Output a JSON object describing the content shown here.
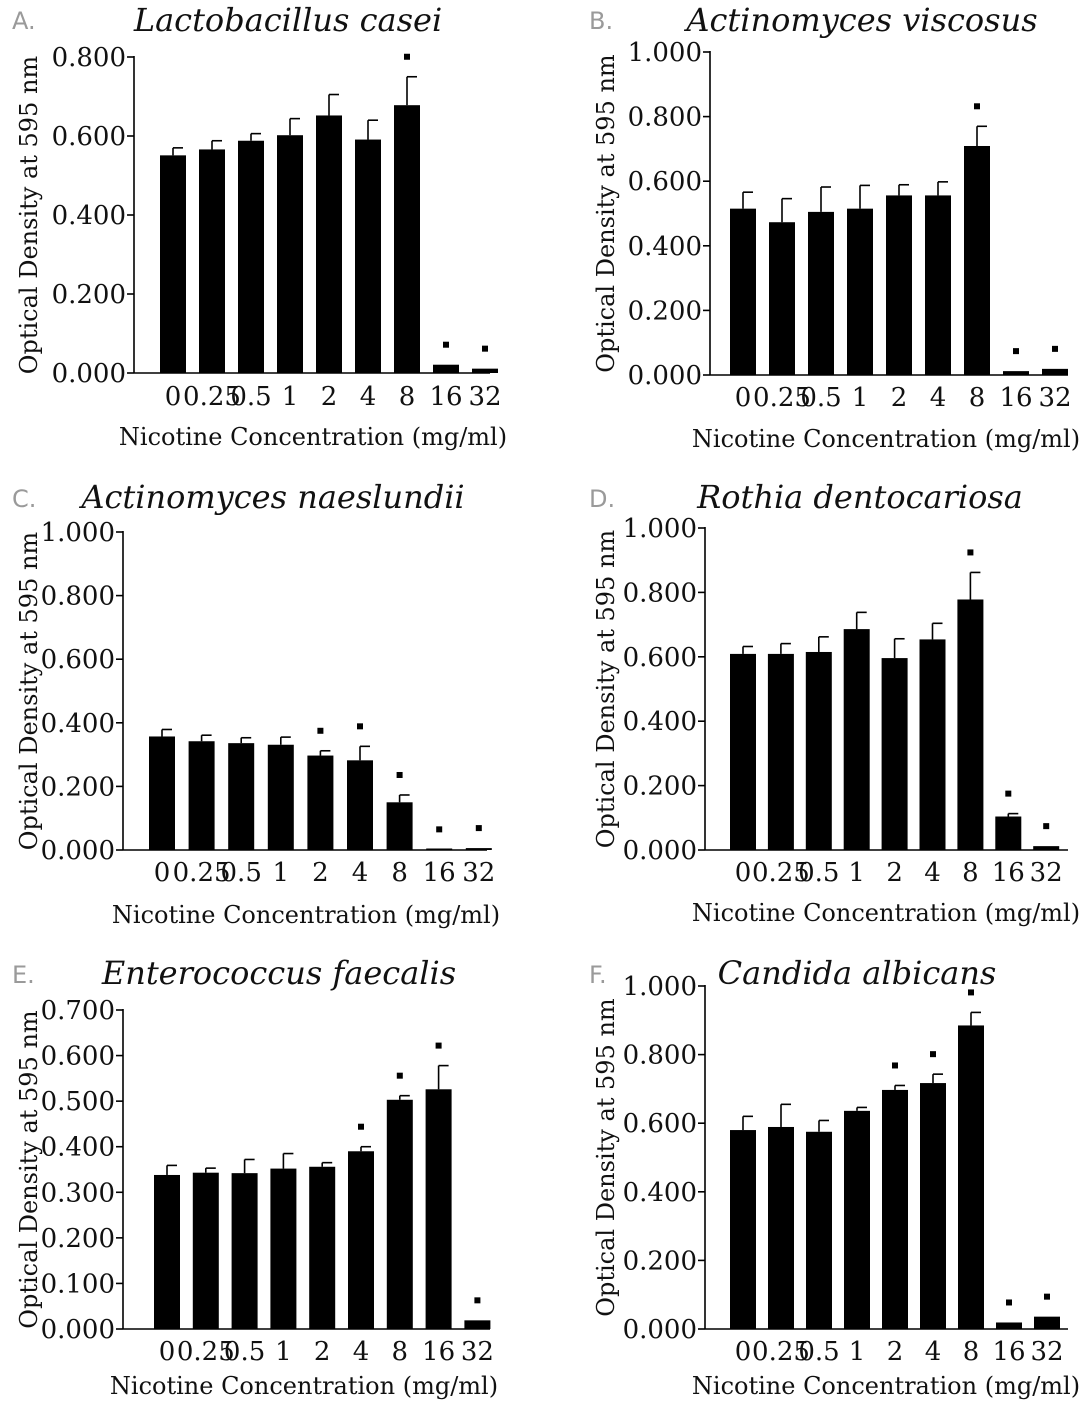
{
  "figure": {
    "x_axis_label": "Nicotine Concentration (mg/ml)",
    "y_axis_label": "Optical Density at 595 nm",
    "bar_color": "#000000",
    "marker": "■"
  },
  "chart_data": [
    {
      "type": "bar",
      "panel": "A.",
      "title": "Lactobacillus casei",
      "xlabel": "Nicotine Concentration (mg/ml)",
      "ylabel": "Optical Density at 595 nm",
      "categories": [
        "0",
        "0.25",
        "0.5",
        "1",
        "2",
        "4",
        "8",
        "16",
        "32"
      ],
      "values": [
        0.551,
        0.566,
        0.588,
        0.602,
        0.652,
        0.591,
        0.678,
        0.021,
        0.011
      ],
      "errors": [
        0.019,
        0.022,
        0.018,
        0.042,
        0.053,
        0.049,
        0.072,
        0.0,
        0.0
      ],
      "significant": [
        false,
        false,
        false,
        false,
        false,
        false,
        true,
        true,
        true
      ],
      "ylim": [
        0,
        0.8
      ],
      "yticks": [
        "0.000",
        "0.200",
        "0.400",
        "0.600",
        "0.800"
      ]
    },
    {
      "type": "bar",
      "panel": "B.",
      "title": "Actinomyces viscosus",
      "xlabel": "Nicotine Concentration (mg/ml)",
      "ylabel": "Optical Density at 595 nm",
      "categories": [
        "0",
        "0.25",
        "0.5",
        "1",
        "2",
        "4",
        "8",
        "16",
        "32"
      ],
      "values": [
        0.515,
        0.473,
        0.505,
        0.515,
        0.556,
        0.556,
        0.709,
        0.012,
        0.019
      ],
      "errors": [
        0.051,
        0.073,
        0.077,
        0.072,
        0.033,
        0.042,
        0.061,
        0.0,
        0.0
      ],
      "significant": [
        false,
        false,
        false,
        false,
        false,
        false,
        true,
        true,
        true
      ],
      "ylim": [
        0,
        1.0
      ],
      "yticks": [
        "0.000",
        "0.200",
        "0.400",
        "0.600",
        "0.800",
        "1.000"
      ]
    },
    {
      "type": "bar",
      "panel": "C.",
      "title": "Actinomyces naeslundii",
      "xlabel": "Nicotine Concentration (mg/ml)",
      "ylabel": "Optical Density at 595 nm",
      "categories": [
        "0",
        "0.25",
        "0.5",
        "1",
        "2",
        "4",
        "8",
        "16",
        "32"
      ],
      "values": [
        0.357,
        0.342,
        0.336,
        0.331,
        0.297,
        0.282,
        0.15,
        0.002,
        0.006
      ],
      "errors": [
        0.022,
        0.019,
        0.017,
        0.024,
        0.015,
        0.044,
        0.023,
        0.0,
        0.0
      ],
      "significant": [
        false,
        false,
        false,
        false,
        true,
        true,
        true,
        true,
        true
      ],
      "ylim": [
        0,
        1.0
      ],
      "yticks": [
        "0.000",
        "0.200",
        "0.400",
        "0.600",
        "0.800",
        "1.000"
      ]
    },
    {
      "type": "bar",
      "panel": "D.",
      "title": "Rothia dentocariosa",
      "xlabel": "Nicotine Concentration (mg/ml)",
      "ylabel": "Optical Density at 595 nm",
      "categories": [
        "0",
        "0.25",
        "0.5",
        "1",
        "2",
        "4",
        "8",
        "16",
        "32"
      ],
      "values": [
        0.609,
        0.609,
        0.615,
        0.686,
        0.596,
        0.654,
        0.778,
        0.104,
        0.012
      ],
      "errors": [
        0.023,
        0.032,
        0.047,
        0.052,
        0.06,
        0.05,
        0.084,
        0.009,
        0.0
      ],
      "significant": [
        false,
        false,
        false,
        false,
        false,
        false,
        true,
        true,
        true
      ],
      "ylim": [
        0,
        1.0
      ],
      "yticks": [
        "0.000",
        "0.200",
        "0.400",
        "0.600",
        "0.800",
        "1.000"
      ]
    },
    {
      "type": "bar",
      "panel": "E.",
      "title": "Enterococcus faecalis",
      "xlabel": "Nicotine Concentration (mg/ml)",
      "ylabel": "Optical Density at 595 nm",
      "categories": [
        "0",
        "0.25",
        "0.5",
        "1",
        "2",
        "4",
        "8",
        "16",
        "32"
      ],
      "values": [
        0.338,
        0.343,
        0.342,
        0.352,
        0.356,
        0.39,
        0.503,
        0.526,
        0.019
      ],
      "errors": [
        0.021,
        0.01,
        0.03,
        0.033,
        0.009,
        0.01,
        0.009,
        0.052,
        0.0
      ],
      "significant": [
        false,
        false,
        false,
        false,
        false,
        true,
        true,
        true,
        true
      ],
      "ylim": [
        0,
        0.7
      ],
      "yticks": [
        "0.000",
        "0.100",
        "0.200",
        "0.300",
        "0.400",
        "0.500",
        "0.600",
        "0.700"
      ]
    },
    {
      "type": "bar",
      "panel": "F.",
      "title": "Candida albicans",
      "xlabel": "Nicotine Concentration (mg/ml)",
      "ylabel": "Optical Density at 595 nm",
      "categories": [
        "0",
        "0.25",
        "0.5",
        "1",
        "2",
        "4",
        "8",
        "16",
        "32"
      ],
      "values": [
        0.58,
        0.589,
        0.575,
        0.636,
        0.697,
        0.717,
        0.885,
        0.019,
        0.036
      ],
      "errors": [
        0.04,
        0.066,
        0.033,
        0.01,
        0.013,
        0.026,
        0.038,
        0.0,
        0.0
      ],
      "significant": [
        false,
        false,
        false,
        false,
        true,
        true,
        true,
        true,
        true
      ],
      "ylim": [
        0,
        1.0
      ],
      "yticks": [
        "0.000",
        "0.200",
        "0.400",
        "0.600",
        "0.800",
        "1.000"
      ]
    }
  ]
}
